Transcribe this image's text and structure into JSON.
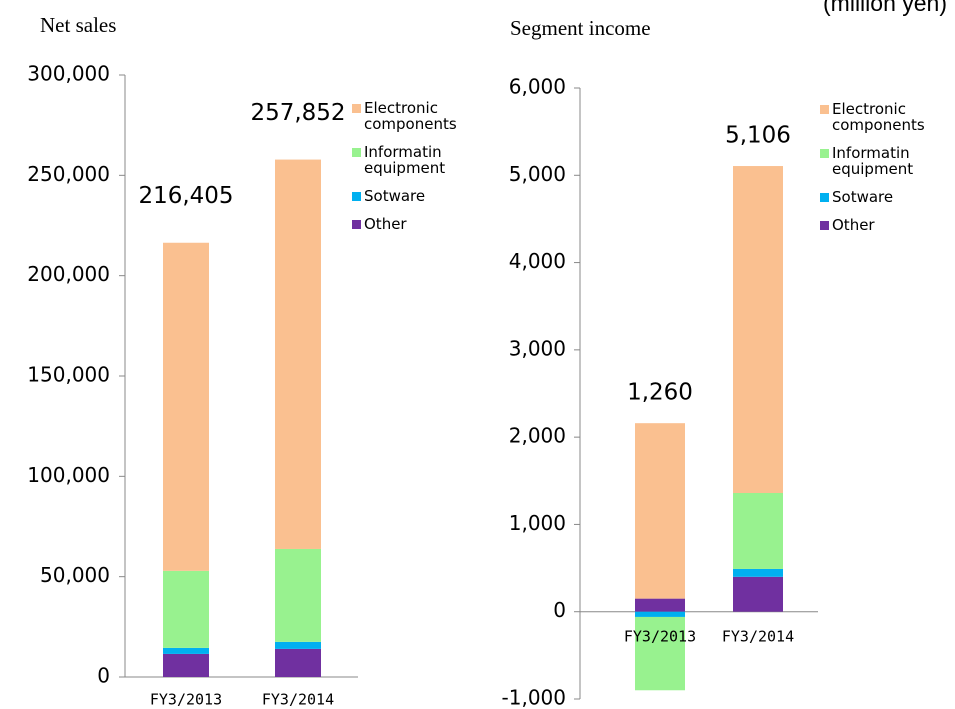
{
  "unit_note": "(million yen)",
  "chart_data": [
    {
      "type": "bar",
      "stacked": true,
      "title": "Net sales",
      "categories": [
        "FY3/2013",
        "FY3/2014"
      ],
      "series": [
        {
          "name": "Other",
          "color": "#7030a0",
          "values": [
            11500,
            14000
          ]
        },
        {
          "name": "Sotware",
          "color": "#00b0f0",
          "values": [
            3000,
            3500
          ]
        },
        {
          "name": "Informatin equipment",
          "color": "#98f28f",
          "values": [
            38400,
            46300
          ]
        },
        {
          "name": "Electronic components",
          "color": "#fac090",
          "values": [
            163505,
            194052
          ]
        }
      ],
      "totals": [
        216405,
        257852
      ],
      "total_labels": [
        "216,405",
        "257,852"
      ],
      "ylim": [
        0,
        300000
      ],
      "yticks": [
        0,
        {
          "value": 50000,
          "label": "50,000"
        },
        {
          "value": 100000,
          "label": "100,000"
        },
        {
          "value": 150000,
          "label": "150,000"
        },
        {
          "value": 200000,
          "label": "200,000"
        },
        {
          "value": 250000,
          "label": "250,000"
        },
        {
          "value": 300000,
          "label": "300,000"
        }
      ],
      "legend_order": [
        3,
        2,
        1,
        0
      ],
      "negative_tick_color": "#ff0000"
    },
    {
      "type": "bar",
      "stacked": true,
      "title": "Segment income",
      "categories": [
        "FY3/2013",
        "FY3/2014"
      ],
      "series": [
        {
          "name": "Other",
          "color": "#7030a0",
          "values": [
            150,
            400
          ]
        },
        {
          "name": "Sotware",
          "color": "#00b0f0",
          "values": [
            -60,
            90
          ]
        },
        {
          "name": "Informatin equipment",
          "color": "#98f28f",
          "values": [
            -840,
            870
          ]
        },
        {
          "name": "Electronic components",
          "color": "#fac090",
          "values": [
            2010,
            3746
          ]
        }
      ],
      "totals": [
        1260,
        5106
      ],
      "total_labels": [
        "1,260",
        "5,106"
      ],
      "ylim": [
        -1000,
        6000
      ],
      "yticks": [
        {
          "value": -1000,
          "label": "-1,000"
        },
        0,
        {
          "value": 1000,
          "label": "1,000"
        },
        {
          "value": 2000,
          "label": "2,000"
        },
        {
          "value": 3000,
          "label": "3,000"
        },
        {
          "value": 4000,
          "label": "4,000"
        },
        {
          "value": 5000,
          "label": "5,000"
        },
        {
          "value": 6000,
          "label": "6,000"
        }
      ],
      "legend_order": [
        3,
        2,
        1,
        0
      ],
      "negative_tick_color": "#ff0000"
    }
  ]
}
